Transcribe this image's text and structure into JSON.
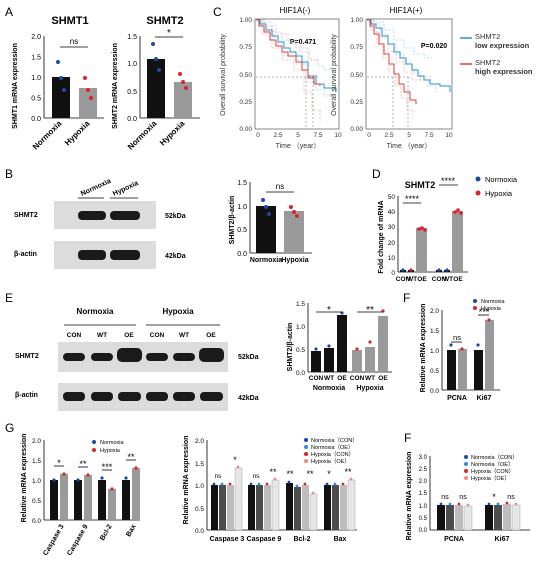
{
  "panels": {
    "A": "A",
    "B": "B",
    "C": "C",
    "D": "D",
    "E": "E",
    "F": "F",
    "G": "G"
  },
  "colors": {
    "black_bar": "#111111",
    "grey_bar": "#9a9a9a",
    "blue_dot": "#1a4aa8",
    "red_dot": "#d8242a",
    "km_low": "#2a8fd4",
    "km_high": "#e0413a",
    "band": "#1a1a1a",
    "blot_bg": "#dcdcdc"
  },
  "sig": {
    "ns": "ns",
    "s1": "*",
    "s2": "**",
    "s3": "***",
    "s4": "****"
  },
  "A": {
    "c1": {
      "title": "SHMT1",
      "ylabel": "SHMT1 mRNA expression",
      "ylim": [
        0,
        2.0
      ],
      "ticks": [
        "0.0",
        "0.5",
        "1.0",
        "1.5",
        "2.0"
      ],
      "categories": [
        "Normoxia",
        "Hypoxia"
      ],
      "values": [
        1.0,
        0.73
      ],
      "errors": [
        0.3,
        0.22
      ]
    },
    "c2": {
      "title": "SHMT2",
      "ylabel": "SHMT2 mRNA expression",
      "ylim": [
        0,
        1.5
      ],
      "ticks": [
        "0.0",
        "0.5",
        "1.0",
        "1.5"
      ],
      "categories": [
        "Normoxia",
        "Hypoxia"
      ],
      "values": [
        1.08,
        0.67
      ],
      "errors": [
        0.22,
        0.14
      ]
    }
  },
  "C": {
    "left": {
      "title": "HIF1A(-)",
      "p": "P=0.471"
    },
    "right": {
      "title": "HIF1A(+)",
      "p": "P=0.020"
    },
    "ylabel": "Overall survival probability",
    "xlabel": "Time （year）",
    "xticks": [
      "0",
      "2.5",
      "5",
      "7.5",
      "10"
    ],
    "yticks": [
      "0.00",
      "0.25",
      "0.50",
      "0.75",
      "1.00"
    ],
    "legend_low_l1": "SHMT2",
    "legend_low_l2": "low expression",
    "legend_high_l1": "SHMT2",
    "legend_high_l2": "high expression"
  },
  "B": {
    "lanes": [
      "Normoxia",
      "Hypoxia"
    ],
    "rows": [
      "SHMT2",
      "β-actin"
    ],
    "kda": [
      "52kDa",
      "42kDa"
    ],
    "chart": {
      "ylabel": "SHMT2/β-actin",
      "ylim": [
        0,
        1.5
      ],
      "ticks": [
        "0.0",
        "0.5",
        "1.0",
        "1.5"
      ],
      "categories": [
        "Normoxia",
        "Hypoxia"
      ],
      "values": [
        1.0,
        0.9
      ],
      "errors": [
        0.13,
        0.09
      ]
    }
  },
  "D": {
    "title": "SHMT2",
    "ylabel": "Fold change of mRNA",
    "ylim": [
      0,
      50
    ],
    "ticks": [
      "0",
      "10",
      "20",
      "30",
      "40",
      "50"
    ],
    "legend": [
      "Normoxia",
      "Hypoxia"
    ],
    "categories": [
      "CON",
      "WT",
      "OE",
      "CON",
      "WT",
      "OE"
    ],
    "groups": [
      {
        "name": "Normoxia",
        "values": [
          1.0,
          1.1,
          29.0
        ]
      },
      {
        "name": "Hypoxia",
        "values": [
          1.2,
          1.0,
          40.0
        ]
      }
    ]
  },
  "E": {
    "groups": [
      "Normoxia",
      "Hypoxia"
    ],
    "lanes": [
      "CON",
      "WT",
      "OE",
      "CON",
      "WT",
      "OE"
    ],
    "rows": [
      "SHMT2",
      "β-actin"
    ],
    "kda": [
      "52kDa",
      "42kDa"
    ],
    "chart": {
      "ylabel": "SHMT2/β-actin",
      "ylim": [
        0,
        1.5
      ],
      "ticks": [
        "0.0",
        "0.5",
        "1.0",
        "1.5"
      ],
      "categories": [
        "CON",
        "WT",
        "OE",
        "CON",
        "WT",
        "OE"
      ],
      "values": [
        0.46,
        0.52,
        1.23,
        0.48,
        0.53,
        1.22
      ],
      "group_labels": [
        "Normoxia",
        "Hypoxia"
      ]
    }
  },
  "F": {
    "ylabel": "Relative mRNA expression",
    "ylim": [
      0,
      2.0
    ],
    "ticks": [
      "0.0",
      "0.5",
      "1.0",
      "1.5",
      "2.0"
    ],
    "legend": [
      "Normoxia",
      "Hypoxia"
    ],
    "categories": [
      "PCNA",
      "Ki67"
    ],
    "series": [
      {
        "name": "Normoxia",
        "values": [
          1.0,
          1.0
        ]
      },
      {
        "name": "Hypoxia",
        "values": [
          1.03,
          1.75
        ]
      }
    ]
  },
  "G": {
    "g1": {
      "ylabel": "Relative mRNA expression",
      "ylim": [
        0,
        2.0
      ],
      "ticks": [
        "0.0",
        "0.5",
        "1.0",
        "1.5",
        "2.0"
      ],
      "legend": [
        "Normoxia",
        "Hypoxia"
      ],
      "categories": [
        "Caspase 3",
        "Caspase 9",
        "Bcl-2",
        "Bax"
      ],
      "series": [
        {
          "name": "Normoxia",
          "values": [
            1.0,
            1.0,
            1.0,
            1.0
          ]
        },
        {
          "name": "Hypoxia",
          "values": [
            1.15,
            1.12,
            0.78,
            1.3
          ]
        }
      ]
    },
    "g2": {
      "ylabel": "Relative mRNA expression",
      "ylim": [
        0,
        2.0
      ],
      "ticks": [
        "0.0",
        "0.5",
        "1.0",
        "1.5",
        "2.0"
      ],
      "legend": [
        "Normoxia（CON）",
        "Normoxia（OE）",
        "Hypoxia（CON）",
        "Hypoxia（OE）"
      ],
      "categories": [
        "Caspase 3",
        "Caspase 9",
        "Bcl-2",
        "Bax"
      ],
      "series": [
        {
          "name": "Normoxia（CON）",
          "values": [
            1.0,
            1.0,
            1.05,
            1.0
          ]
        },
        {
          "name": "Normoxia（OE）",
          "values": [
            1.0,
            1.0,
            0.95,
            1.0
          ]
        },
        {
          "name": "Hypoxia（CON）",
          "values": [
            1.0,
            1.0,
            1.0,
            1.0
          ]
        },
        {
          "name": "Hypoxia（OE）",
          "values": [
            1.38,
            1.12,
            0.8,
            1.12
          ]
        }
      ]
    },
    "g3": {
      "ylabel": "Relative mRNA expression",
      "ylim": [
        0,
        3.0
      ],
      "ticks": [
        "0.0",
        "0.5",
        "1.0",
        "1.5",
        "2.0",
        "2.5",
        "3.0"
      ],
      "legend": [
        "Normoxia（CON）",
        "Normoxia（OE）",
        "Hypoxia（CON）",
        "Hypoxia（OE）"
      ],
      "categories": [
        "PCNA",
        "Ki67"
      ],
      "series": [
        {
          "name": "Normoxia（CON）",
          "values": [
            1.0,
            1.0
          ]
        },
        {
          "name": "Normoxia（OE）",
          "values": [
            1.0,
            1.0
          ]
        },
        {
          "name": "Hypoxia（CON）",
          "values": [
            1.0,
            1.05
          ]
        },
        {
          "name": "Hypoxia（OE）",
          "values": [
            0.98,
            1.0
          ]
        }
      ]
    }
  }
}
